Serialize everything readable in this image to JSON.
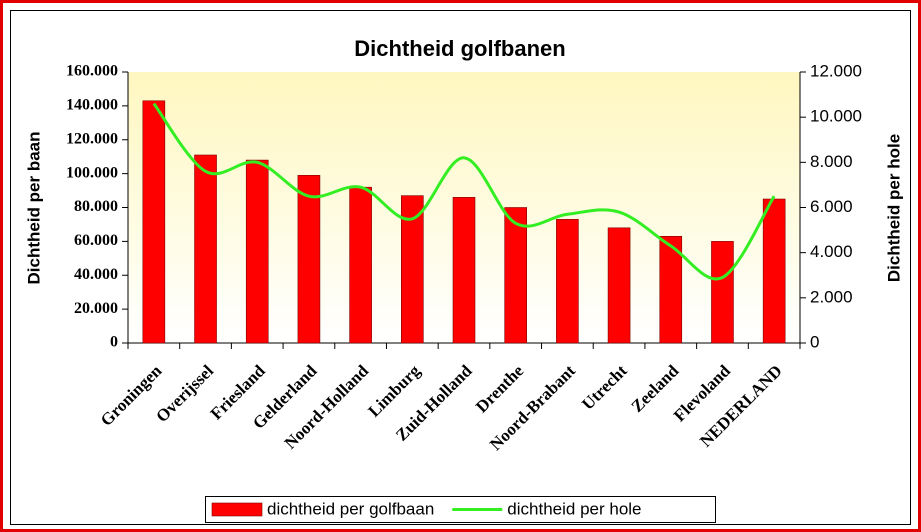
{
  "chart_data": {
    "type": "bar-line",
    "title": "Dichtheid golfbanen",
    "y_label": "Dichtheid per baan",
    "y2_label": "Dichtheid per hole",
    "categories": [
      "Groningen",
      "Overijssel",
      "Friesland",
      "Gelderland",
      "Noord-Holland",
      "Limburg",
      "Zuid-Holland",
      "Drenthe",
      "Noord-Brabant",
      "Utrecht",
      "Zeeland",
      "Flevoland",
      "NEDERLAND"
    ],
    "series": [
      {
        "name": "dichtheid per golfbaan",
        "type": "bar",
        "color": "#ff0000",
        "values": [
          143000,
          111000,
          108000,
          99000,
          92000,
          87000,
          86000,
          80000,
          73000,
          68000,
          63000,
          60000,
          85000
        ]
      },
      {
        "name": "dichtheid per hole",
        "type": "line",
        "axis": "y2",
        "color": "#33ee22",
        "values": [
          10600,
          7600,
          8000,
          6500,
          6900,
          5500,
          8200,
          5300,
          5700,
          5800,
          4300,
          2900,
          6500
        ]
      }
    ],
    "ylim": [
      0,
      160000
    ],
    "yticks": [
      0,
      {
        "value": 20000,
        "label": "20.000"
      },
      {
        "value": 40000,
        "label": "40.000"
      },
      {
        "value": 60000,
        "label": "60.000"
      },
      {
        "value": 80000,
        "label": "80.000"
      },
      {
        "value": 100000,
        "label": "100.000"
      },
      {
        "value": 120000,
        "label": "120.000"
      },
      {
        "value": 140000,
        "label": "140.000"
      },
      {
        "value": 160000,
        "label": "160.000"
      }
    ],
    "y2lim": [
      0,
      12000
    ],
    "y2ticks": [
      0,
      {
        "value": 2000,
        "label": "2.000"
      },
      {
        "value": 4000,
        "label": "4.000"
      },
      {
        "value": 6000,
        "label": "6.000"
      },
      {
        "value": 8000,
        "label": "8.000"
      },
      {
        "value": 10000,
        "label": "10.000"
      },
      {
        "value": 12000,
        "label": "12.000"
      }
    ],
    "legend": "bottom",
    "grid": false
  }
}
